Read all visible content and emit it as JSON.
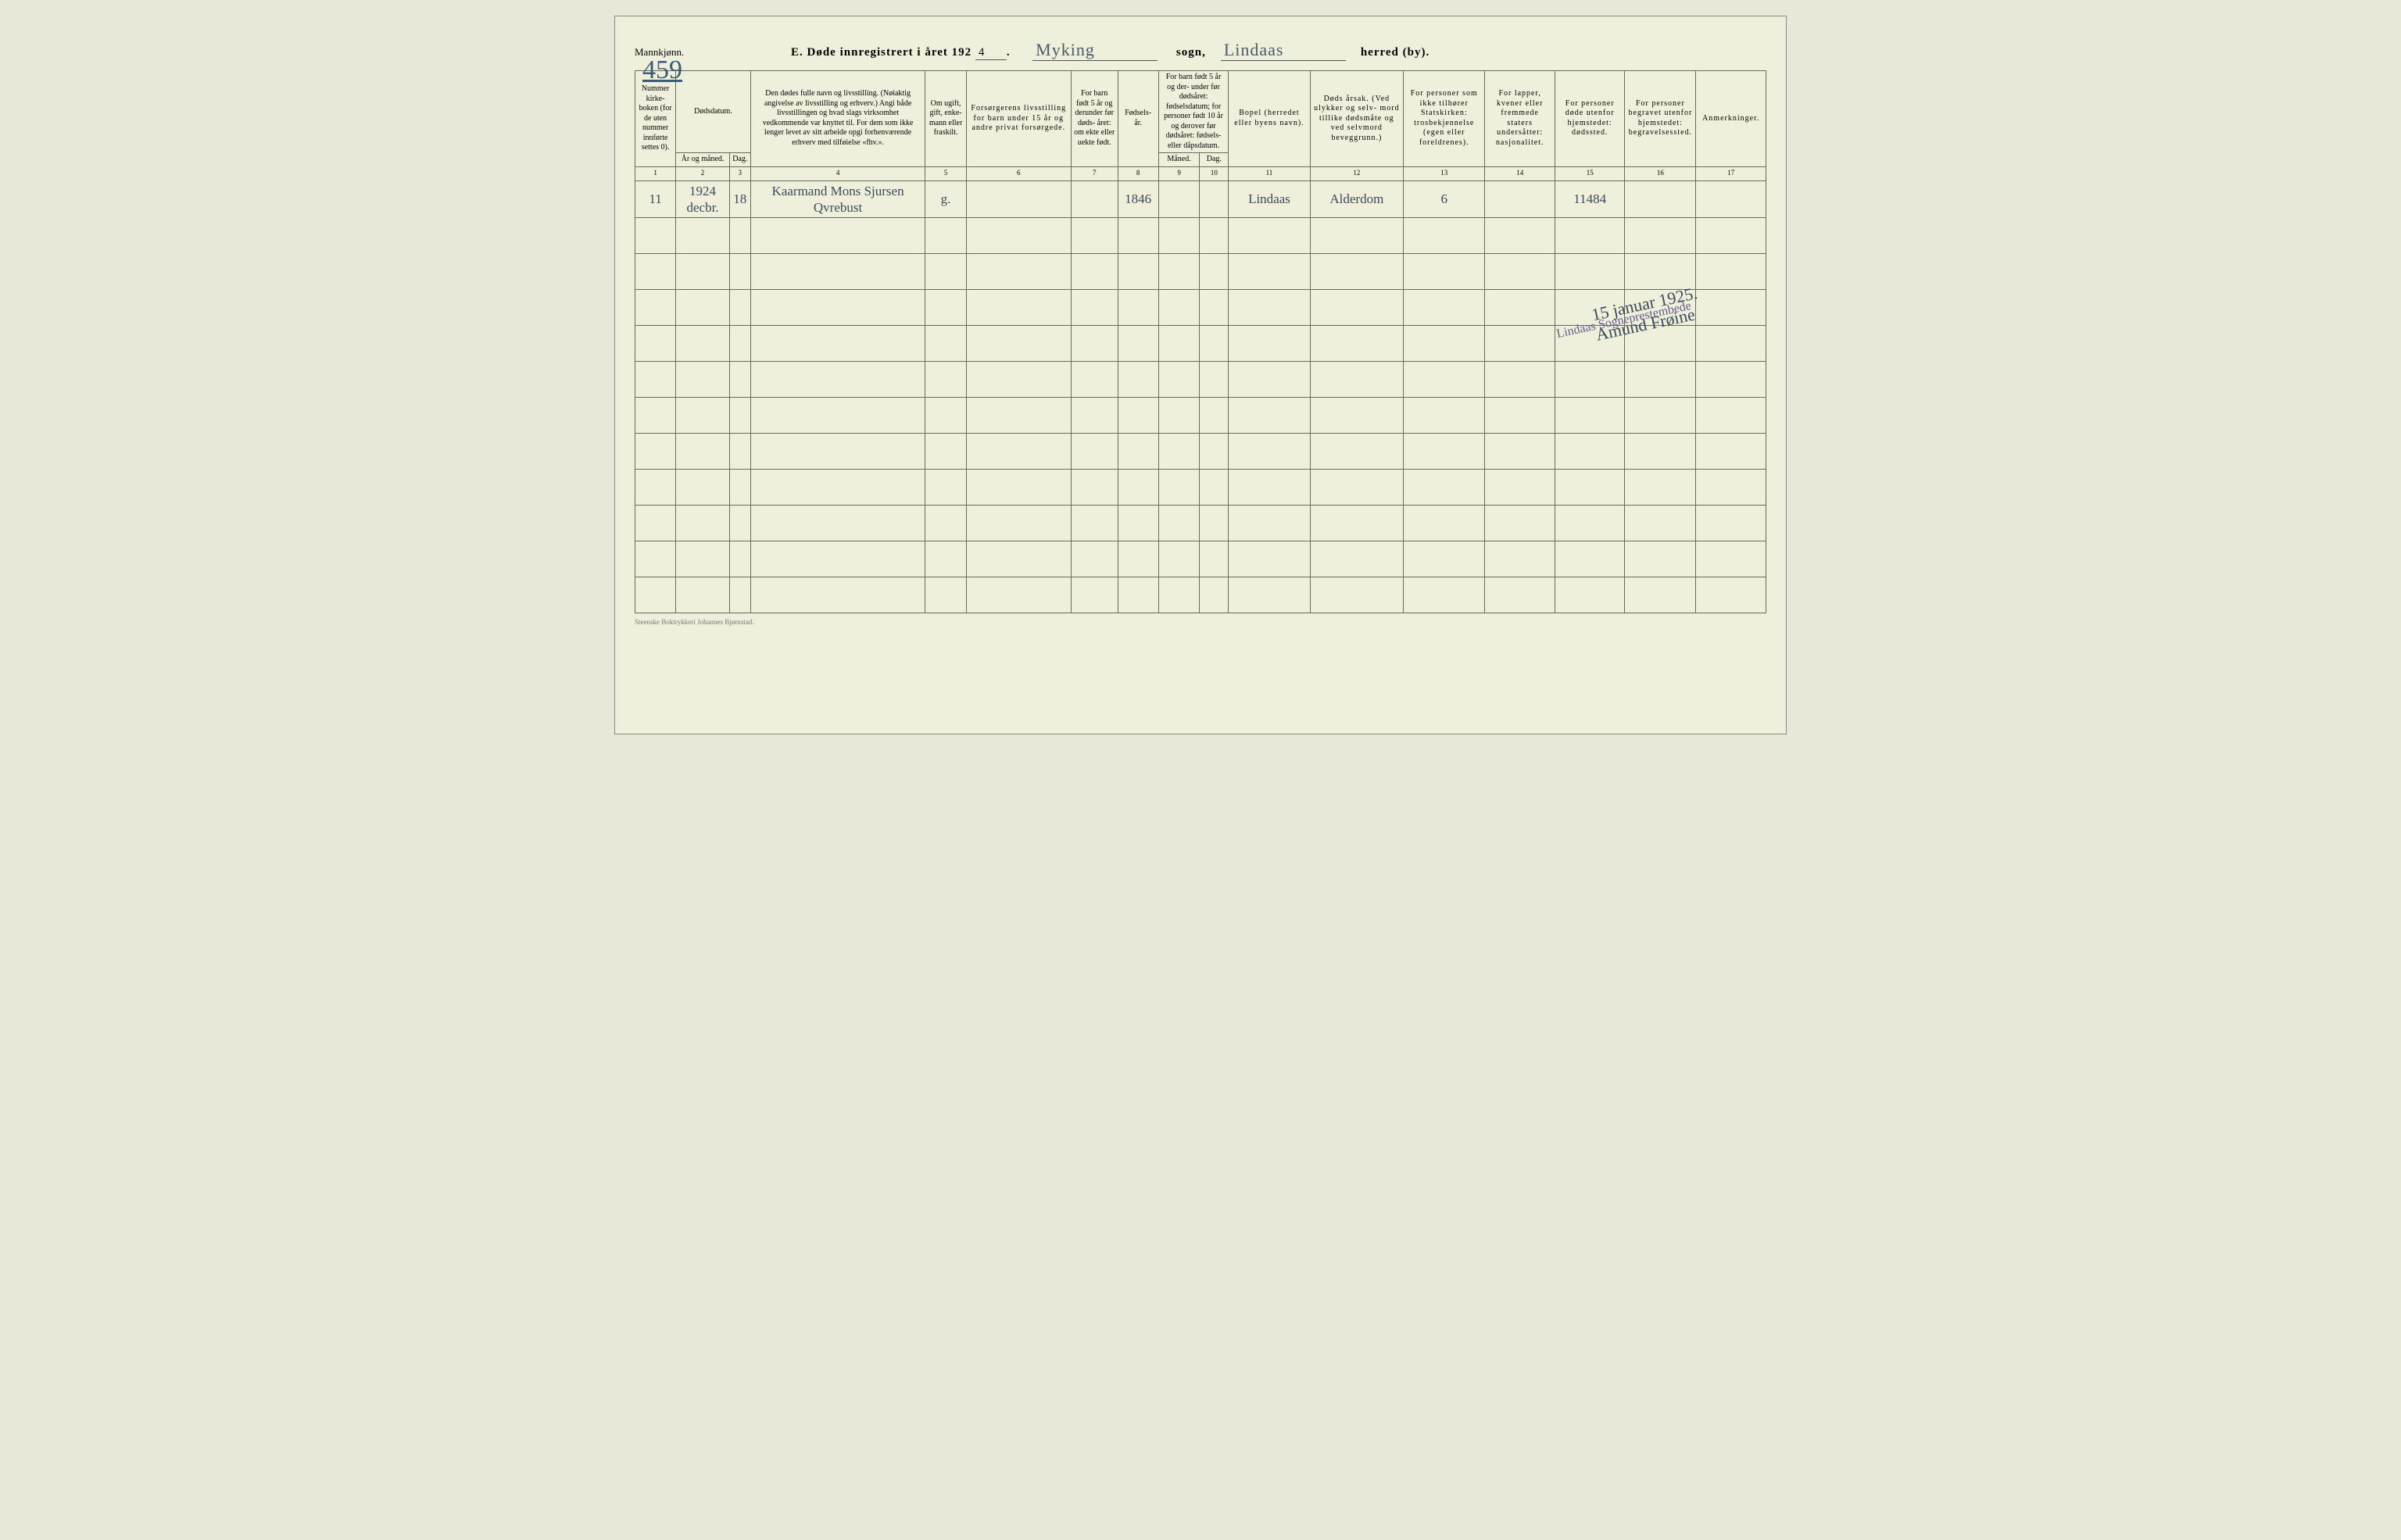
{
  "header": {
    "gender_label": "Mannkjønn.",
    "page_number": "459",
    "title_prefix": "E.  Døde innregistrert i året 192",
    "year_suffix": "4",
    "sogn_value": "Myking",
    "sogn_label": "sogn,",
    "herred_value": "Lindaas",
    "herred_label": "herred (by)."
  },
  "columns": {
    "c1": "Nummer kirke- boken (for de uten nummer innførte settes 0).",
    "c2_top": "Dødsdatum.",
    "c2a": "År og måned.",
    "c2b": "Dag.",
    "c4": "Den dødes fulle navn og livsstilling. (Nøiaktig angivelse av livsstilling og erhverv.) Angi både livsstillingen og hvad slags virksomhet vedkommende var knyttet til. For dem som ikke lenger levet av sitt arbeide opgi forhenværende erhverv med tilføielse «fhv.».",
    "c5": "Om ugift, gift, enke- mann eller fraskilt.",
    "c6": "Forsørgerens livsstilling for barn under 15 år og andre privat forsørgede.",
    "c7": "For barn født 5 år og derunder før døds- året: om ekte eller uekte født.",
    "c8": "Fødsels- år.",
    "c9_top": "For barn født 5 år og der- under før dødsåret: fødselsdatum; for personer født 10 år og derover før dødsåret: fødsels- eller dåpsdatum.",
    "c9a": "Måned.",
    "c9b": "Dag.",
    "c11": "Bopel (herredet eller byens navn).",
    "c12": "Døds årsak. (Ved ulykker og selv- mord tillike dødsmåte og ved selvmord beveggrunn.)",
    "c13": "For personer som ikke tilhører Statskirken: trosbekjennelse (egen eller foreldrenes).",
    "c14": "For lapper, kvener eller fremmede staters undersåtter: nasjonalitet.",
    "c15": "For personer døde utenfor hjemstedet: dødssted.",
    "c16": "For personer begravet utenfor hjemstedet: begravelsessted.",
    "c17": "Anmerkninger."
  },
  "colnums": [
    "1",
    "2",
    "3",
    "4",
    "5",
    "6",
    "7",
    "8",
    "9",
    "10",
    "11",
    "12",
    "13",
    "14",
    "15",
    "16",
    "17"
  ],
  "rows": [
    {
      "num": "11",
      "year_month": "1924 decbr.",
      "day": "18",
      "name": "Kaarmand Mons Sjursen Qvrebust",
      "status": "g.",
      "provider": "",
      "legitimacy": "",
      "birth_year": "1846",
      "birth_month": "",
      "birth_day": "",
      "residence": "Lindaas",
      "cause": "Alderdom",
      "faith": "6",
      "nationality": "",
      "death_place": "11484",
      "burial_place": "",
      "remarks": ""
    }
  ],
  "stamp": {
    "text": "Lindaas Sogneprestembede",
    "date": "15 januar 1925.",
    "signature": "Amund Frøine"
  },
  "footer": "Steenske Boktrykkeri Johannes Bjørnstad.",
  "style": {
    "page_bg": "#eef0dc",
    "border_color": "#6a6a5a",
    "handwriting_color": "#3d4a5a",
    "stamp_color": "#6a5a8a",
    "empty_rows": 11
  }
}
